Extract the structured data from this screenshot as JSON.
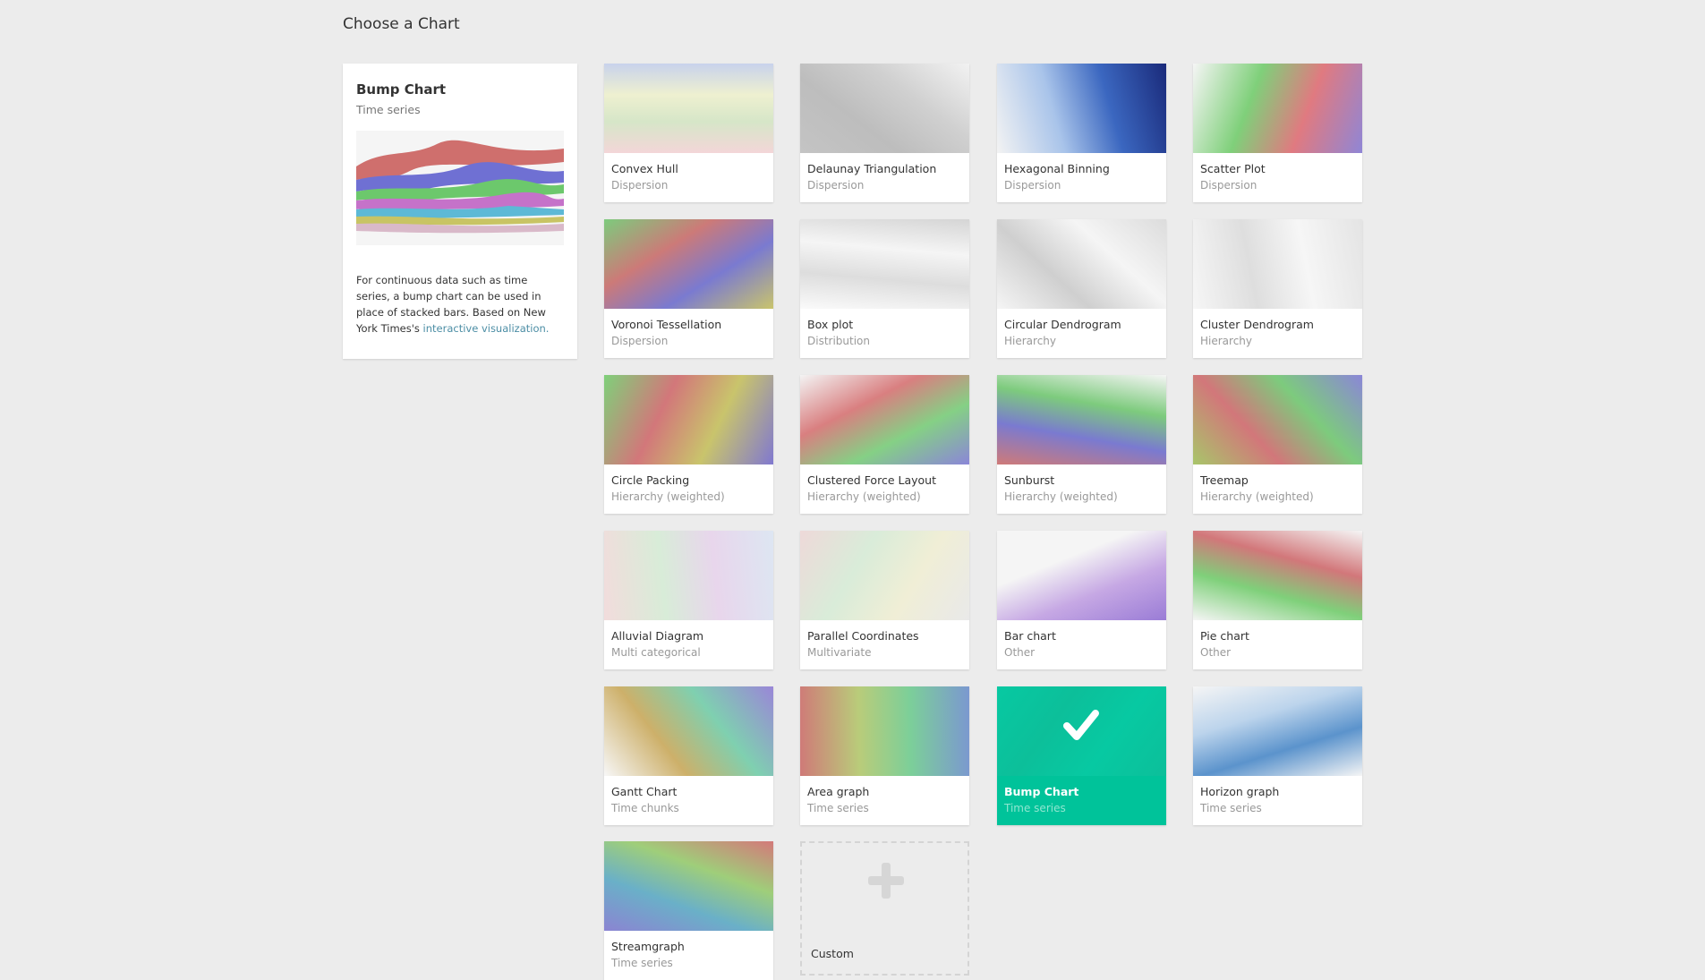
{
  "header": {
    "title": "Choose a Chart"
  },
  "detail": {
    "title": "Bump Chart",
    "category": "Time series",
    "description": "For continuous data such as time series, a bump chart can be used in place of stacked bars. Based on New York Times's ",
    "link_text": "interactive visualization."
  },
  "selected": "Bump Chart",
  "accent_color": "#00c39a",
  "cards": [
    {
      "name": "Convex Hull",
      "category": "Dispersion",
      "colors": [
        "#f3d6d8",
        "#d6e6c8",
        "#eef0d0",
        "#c8d2ec"
      ]
    },
    {
      "name": "Delaunay Triangulation",
      "category": "Dispersion",
      "colors": [
        "#c4c4c4",
        "#bdbdbd",
        "#d0d0d0",
        "#f2f2f2"
      ]
    },
    {
      "name": "Hexagonal Binning",
      "category": "Dispersion",
      "colors": [
        "#f3f3f3",
        "#a9c4ea",
        "#3b67c0",
        "#1a2a7a"
      ]
    },
    {
      "name": "Scatter Plot",
      "category": "Dispersion",
      "colors": [
        "#f5f5f5",
        "#7fd07a",
        "#e07a80",
        "#8f86d6"
      ]
    },
    {
      "name": "Voronoi Tessellation",
      "category": "Dispersion",
      "colors": [
        "#7dcb7d",
        "#cc7a78",
        "#7a7ad0",
        "#c9c46c"
      ]
    },
    {
      "name": "Box plot",
      "category": "Distribution",
      "colors": [
        "#fafafa",
        "#dddddd",
        "#f5f5f5",
        "#d5d5d5"
      ]
    },
    {
      "name": "Circular Dendrogram",
      "category": "Hierarchy",
      "colors": [
        "#f5f5f5",
        "#cfcfcf",
        "#f5f5f5",
        "#dcdcdc"
      ]
    },
    {
      "name": "Cluster Dendrogram",
      "category": "Hierarchy",
      "colors": [
        "#f6f6f6",
        "#dedede",
        "#f6f6f6",
        "#e4e4e4"
      ]
    },
    {
      "name": "Circle Packing",
      "category": "Hierarchy (weighted)",
      "colors": [
        "#7fd07a",
        "#d2777a",
        "#c9c46c",
        "#8078d0"
      ]
    },
    {
      "name": "Clustered Force Layout",
      "category": "Hierarchy (weighted)",
      "colors": [
        "#f3f3f3",
        "#d97f80",
        "#85d085",
        "#8b86d8"
      ]
    },
    {
      "name": "Sunburst",
      "category": "Hierarchy (weighted)",
      "colors": [
        "#cf7a78",
        "#7a7ad0",
        "#7dcb7d",
        "#f5f5f5"
      ]
    },
    {
      "name": "Treemap",
      "category": "Hierarchy (weighted)",
      "colors": [
        "#a8c66a",
        "#d2777a",
        "#7dcb7d",
        "#8b86d8"
      ]
    },
    {
      "name": "Alluvial Diagram",
      "category": "Multi categorical",
      "colors": [
        "#f2dcdc",
        "#d8ecd8",
        "#e8d6ec",
        "#dde6f2"
      ]
    },
    {
      "name": "Parallel Coordinates",
      "category": "Multivariate",
      "colors": [
        "#eed9d9",
        "#d9ecd9",
        "#f0eed6",
        "#e9e9e9"
      ]
    },
    {
      "name": "Bar chart",
      "category": "Other",
      "colors": [
        "#f5f5f5",
        "#f5f5f5",
        "#c6a8e4",
        "#9a7cd6"
      ]
    },
    {
      "name": "Pie chart",
      "category": "Other",
      "colors": [
        "#f5f5f5",
        "#7fd07a",
        "#d2777a",
        "#f5f5f5"
      ]
    },
    {
      "name": "Gantt Chart",
      "category": "Time chunks",
      "colors": [
        "#f7f7f7",
        "#cdb06a",
        "#7fd0b0",
        "#9a86d8"
      ]
    },
    {
      "name": "Area graph",
      "category": "Time series",
      "colors": [
        "#cf7a78",
        "#b9cc7a",
        "#7ccf99",
        "#7b98d0"
      ]
    },
    {
      "name": "Bump Chart",
      "category": "Time series",
      "colors": [
        "#07c9a2",
        "#0cbf9a",
        "#07c9a2",
        "#0cbf9a"
      ]
    },
    {
      "name": "Horizon graph",
      "category": "Time series",
      "colors": [
        "#f5f5f5",
        "#bcd4ec",
        "#5b93cc",
        "#f5f5f5"
      ]
    },
    {
      "name": "Streamgraph",
      "category": "Time series",
      "colors": [
        "#8b84d2",
        "#6ab0c8",
        "#9fce7a",
        "#d4797a"
      ]
    }
  ],
  "custom": {
    "name": "Custom",
    "icon": "plus-icon"
  }
}
